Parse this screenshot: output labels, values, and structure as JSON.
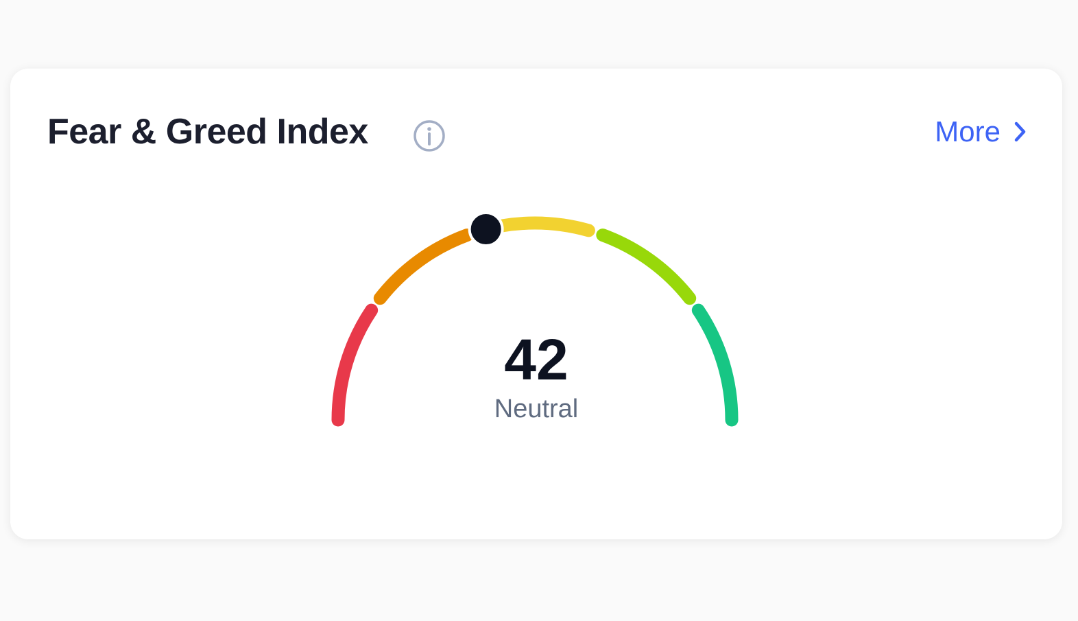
{
  "header": {
    "title": "Fear & Greed Index",
    "link": "More"
  },
  "chart_data": {
    "type": "gauge",
    "value": 42,
    "label": "Neutral",
    "ylim": [
      0,
      100
    ],
    "segment_colors": [
      "#e8394a",
      "#e88a00",
      "#f2d230",
      "#98d80a",
      "#17c684"
    ],
    "marker_color": "#0d1220"
  }
}
